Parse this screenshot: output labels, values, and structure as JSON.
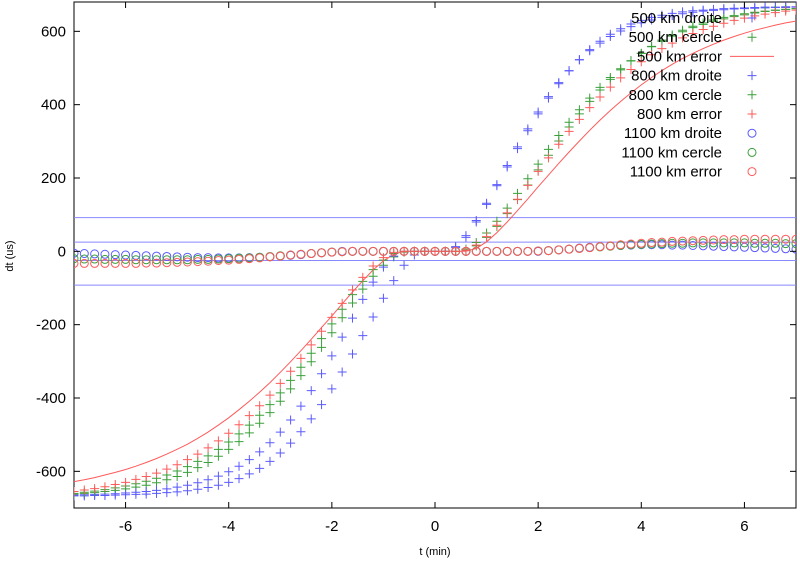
{
  "chart_data": {
    "type": "scatter",
    "title": "",
    "xlabel": "t (min)",
    "ylabel": "dt (us)",
    "xlim": [
      -7,
      7
    ],
    "ylim": [
      -700,
      680
    ],
    "x_ticks": [
      -6,
      -4,
      -2,
      0,
      2,
      4,
      6
    ],
    "y_ticks": [
      -600,
      -400,
      -200,
      0,
      200,
      400,
      600
    ],
    "grid": false,
    "legend_position": "top-right",
    "x": [
      -7.0,
      -6.8,
      -6.6,
      -6.4,
      -6.2,
      -6.0,
      -5.8,
      -5.6,
      -5.4,
      -5.2,
      -5.0,
      -4.8,
      -4.6,
      -4.4,
      -4.2,
      -4.0,
      -3.8,
      -3.6,
      -3.4,
      -3.2,
      -3.0,
      -2.8,
      -2.6,
      -2.4,
      -2.2,
      -2.0,
      -1.8,
      -1.6,
      -1.4,
      -1.2,
      -1.0,
      -0.8,
      -0.6,
      -0.4,
      -0.2,
      0.0,
      0.2,
      0.4,
      0.6,
      0.8,
      1.0,
      1.2,
      1.4,
      1.6,
      1.8,
      2.0,
      2.2,
      2.4,
      2.6,
      2.8,
      3.0,
      3.2,
      3.4,
      3.6,
      3.8,
      4.0,
      4.2,
      4.4,
      4.6,
      4.8,
      5.0,
      5.2,
      5.4,
      5.6,
      5.8,
      6.0,
      6.2,
      6.4,
      6.6,
      6.8,
      7.0
    ],
    "series": [
      {
        "name": "500 km droite",
        "marker": "+",
        "color": "#5a5aff",
        "values": [
          -667,
          -667,
          -666,
          -666,
          -665,
          -664,
          -663,
          -662,
          -660,
          -658,
          -656,
          -653,
          -649,
          -644,
          -638,
          -630,
          -620,
          -607,
          -592,
          -573,
          -550,
          -523,
          -492,
          -457,
          -418,
          -375,
          -329,
          -280,
          -230,
          -179,
          -128,
          -80,
          -38,
          -10,
          0,
          0,
          0,
          10,
          38,
          80,
          128,
          179,
          230,
          280,
          329,
          375,
          418,
          457,
          492,
          523,
          550,
          573,
          592,
          607,
          620,
          630,
          638,
          644,
          649,
          653,
          656,
          658,
          660,
          662,
          663,
          664,
          665,
          666,
          666,
          667,
          667
        ]
      },
      {
        "name": "500 km cercle",
        "marker": "+",
        "color": "#3aa03a",
        "values": [
          -662,
          -660,
          -658,
          -655,
          -652,
          -648,
          -643,
          -638,
          -631,
          -623,
          -614,
          -603,
          -590,
          -576,
          -559,
          -540,
          -519,
          -495,
          -469,
          -440,
          -409,
          -375,
          -339,
          -301,
          -262,
          -222,
          -181,
          -141,
          -103,
          -68,
          -38,
          -15,
          -2,
          0,
          0,
          0,
          0,
          0,
          2,
          15,
          38,
          68,
          103,
          141,
          181,
          222,
          262,
          301,
          339,
          375,
          409,
          440,
          469,
          495,
          519,
          540,
          559,
          576,
          590,
          603,
          614,
          623,
          631,
          638,
          643,
          648,
          652,
          655,
          658,
          660,
          662
        ]
      },
      {
        "name": "500 km error",
        "marker": "line",
        "color": "#ff5a5a",
        "values": [
          -628,
          -623,
          -617,
          -610,
          -603,
          -595,
          -586,
          -576,
          -565,
          -553,
          -540,
          -526,
          -510,
          -493,
          -474,
          -454,
          -432,
          -409,
          -384,
          -358,
          -330,
          -301,
          -271,
          -240,
          -208,
          -176,
          -143,
          -111,
          -80,
          -51,
          -26,
          -8,
          0,
          0,
          0,
          0,
          0,
          0,
          0,
          8,
          26,
          51,
          80,
          111,
          143,
          176,
          208,
          240,
          271,
          301,
          330,
          358,
          384,
          409,
          432,
          454,
          474,
          493,
          510,
          526,
          540,
          553,
          565,
          576,
          586,
          595,
          603,
          610,
          617,
          623,
          628
        ]
      },
      {
        "name": "800 km droite",
        "marker": "+",
        "color": "#5a5aff",
        "values": [
          -665,
          -664,
          -663,
          -662,
          -661,
          -659,
          -657,
          -655,
          -652,
          -648,
          -643,
          -638,
          -631,
          -623,
          -613,
          -601,
          -586,
          -568,
          -547,
          -522,
          -493,
          -460,
          -422,
          -380,
          -334,
          -285,
          -234,
          -182,
          -131,
          -84,
          -43,
          -13,
          0,
          0,
          0,
          0,
          0,
          13,
          43,
          84,
          131,
          182,
          234,
          285,
          334,
          380,
          422,
          460,
          493,
          522,
          547,
          568,
          586,
          601,
          613,
          623,
          631,
          638,
          643,
          648,
          652,
          655,
          657,
          659,
          661,
          662,
          663,
          664,
          665,
          665,
          666
        ]
      },
      {
        "name": "800 km cercle",
        "marker": "+",
        "color": "#3aa03a",
        "values": [
          -660,
          -657,
          -654,
          -650,
          -645,
          -640,
          -634,
          -627,
          -619,
          -610,
          -599,
          -587,
          -573,
          -558,
          -540,
          -520,
          -498,
          -474,
          -447,
          -418,
          -386,
          -352,
          -316,
          -278,
          -238,
          -198,
          -158,
          -118,
          -82,
          -50,
          -24,
          -6,
          0,
          0,
          0,
          0,
          0,
          0,
          6,
          24,
          50,
          82,
          118,
          158,
          198,
          238,
          278,
          316,
          352,
          386,
          418,
          447,
          474,
          498,
          520,
          540,
          558,
          573,
          587,
          599,
          610,
          619,
          627,
          634,
          640,
          645,
          650,
          654,
          657,
          660,
          662
        ]
      },
      {
        "name": "800 km error",
        "marker": "+",
        "color": "#ff5a5a",
        "values": [
          -655,
          -651,
          -647,
          -642,
          -636,
          -630,
          -622,
          -614,
          -605,
          -594,
          -582,
          -568,
          -553,
          -536,
          -517,
          -496,
          -473,
          -448,
          -421,
          -392,
          -360,
          -327,
          -292,
          -255,
          -218,
          -180,
          -142,
          -105,
          -71,
          -40,
          -17,
          -3,
          0,
          0,
          0,
          0,
          0,
          0,
          3,
          17,
          40,
          71,
          105,
          142,
          180,
          218,
          255,
          292,
          327,
          360,
          392,
          421,
          448,
          473,
          496,
          517,
          536,
          553,
          568,
          582,
          594,
          605,
          614,
          622,
          630,
          636,
          642,
          647,
          651,
          655,
          658
        ]
      },
      {
        "name": "1100 km droite",
        "marker": "o",
        "color": "#5a5aff",
        "values": [
          -5,
          -6,
          -7,
          -8,
          -9,
          -10,
          -11,
          -12,
          -13,
          -14,
          -15,
          -16,
          -17,
          -17,
          -18,
          -18,
          -18,
          -17,
          -16,
          -15,
          -13,
          -11,
          -9,
          -6,
          -4,
          -2,
          0,
          0,
          0,
          0,
          0,
          0,
          0,
          0,
          0,
          0,
          0,
          0,
          0,
          0,
          0,
          0,
          0,
          0,
          0,
          0,
          2,
          4,
          6,
          9,
          11,
          13,
          15,
          16,
          17,
          18,
          18,
          18,
          17,
          17,
          16,
          15,
          14,
          13,
          12,
          11,
          10,
          9,
          8,
          7,
          6
        ]
      },
      {
        "name": "1100 km cercle",
        "marker": "o",
        "color": "#3aa03a",
        "values": [
          -20,
          -21,
          -21,
          -22,
          -22,
          -22,
          -23,
          -23,
          -23,
          -23,
          -23,
          -23,
          -22,
          -22,
          -21,
          -20,
          -19,
          -18,
          -16,
          -14,
          -12,
          -10,
          -8,
          -6,
          -4,
          -2,
          -1,
          0,
          0,
          0,
          0,
          0,
          0,
          0,
          0,
          0,
          0,
          0,
          0,
          0,
          0,
          0,
          0,
          0,
          0,
          1,
          2,
          4,
          6,
          8,
          10,
          12,
          14,
          16,
          18,
          19,
          20,
          21,
          22,
          22,
          23,
          23,
          23,
          23,
          23,
          23,
          22,
          22,
          22,
          21,
          21
        ]
      },
      {
        "name": "1100 km error",
        "marker": "o",
        "color": "#ff5a5a",
        "values": [
          -33,
          -33,
          -33,
          -33,
          -33,
          -33,
          -33,
          -32,
          -32,
          -31,
          -30,
          -29,
          -28,
          -27,
          -25,
          -24,
          -22,
          -20,
          -18,
          -15,
          -13,
          -10,
          -8,
          -6,
          -4,
          -2,
          -1,
          0,
          0,
          0,
          0,
          0,
          0,
          0,
          0,
          0,
          0,
          0,
          0,
          0,
          0,
          0,
          0,
          0,
          0,
          1,
          2,
          4,
          6,
          8,
          10,
          13,
          15,
          18,
          20,
          22,
          24,
          25,
          27,
          28,
          29,
          30,
          31,
          32,
          32,
          33,
          33,
          33,
          33,
          33,
          33
        ]
      }
    ],
    "reference_lines": [
      {
        "y": 92,
        "color": "#8888ff"
      },
      {
        "y": 25,
        "color": "#8888ff"
      },
      {
        "y": -25,
        "color": "#8888ff"
      },
      {
        "y": -92,
        "color": "#8888ff"
      }
    ]
  }
}
